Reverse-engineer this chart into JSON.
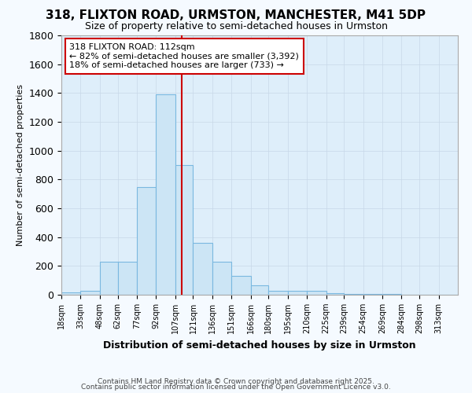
{
  "title": "318, FLIXTON ROAD, URMSTON, MANCHESTER, M41 5DP",
  "subtitle": "Size of property relative to semi-detached houses in Urmston",
  "xlabel": "Distribution of semi-detached houses by size in Urmston",
  "ylabel": "Number of semi-detached properties",
  "footer_line1": "Contains HM Land Registry data © Crown copyright and database right 2025.",
  "footer_line2": "Contains public sector information licensed under the Open Government Licence v3.0.",
  "bin_labels": [
    "18sqm",
    "33sqm",
    "48sqm",
    "62sqm",
    "77sqm",
    "92sqm",
    "107sqm",
    "121sqm",
    "136sqm",
    "151sqm",
    "166sqm",
    "180sqm",
    "195sqm",
    "210sqm",
    "225sqm",
    "239sqm",
    "254sqm",
    "269sqm",
    "284sqm",
    "298sqm",
    "313sqm"
  ],
  "bin_values": [
    15,
    25,
    230,
    230,
    750,
    1390,
    900,
    360,
    230,
    130,
    65,
    25,
    30,
    30,
    10,
    5,
    5,
    3,
    2,
    2,
    1
  ],
  "bar_color": "#cce5f5",
  "bar_edge_color": "#7ab8e0",
  "grid_color": "#c8d8e8",
  "bg_color": "#deeefa",
  "fig_bg_color": "#f5faff",
  "vline_x": 112,
  "vline_color": "#cc0000",
  "annotation_text": "318 FLIXTON ROAD: 112sqm\n← 82% of semi-detached houses are smaller (3,392)\n18% of semi-detached houses are larger (733) →",
  "annotation_box_color": "#ffffff",
  "annotation_box_edgecolor": "#cc0000",
  "ylim": [
    0,
    1800
  ],
  "bin_edges": [
    18,
    33,
    48,
    62,
    77,
    92,
    107,
    121,
    136,
    151,
    166,
    180,
    195,
    210,
    225,
    239,
    254,
    269,
    284,
    298,
    313,
    328
  ],
  "title_fontsize": 11,
  "subtitle_fontsize": 9
}
